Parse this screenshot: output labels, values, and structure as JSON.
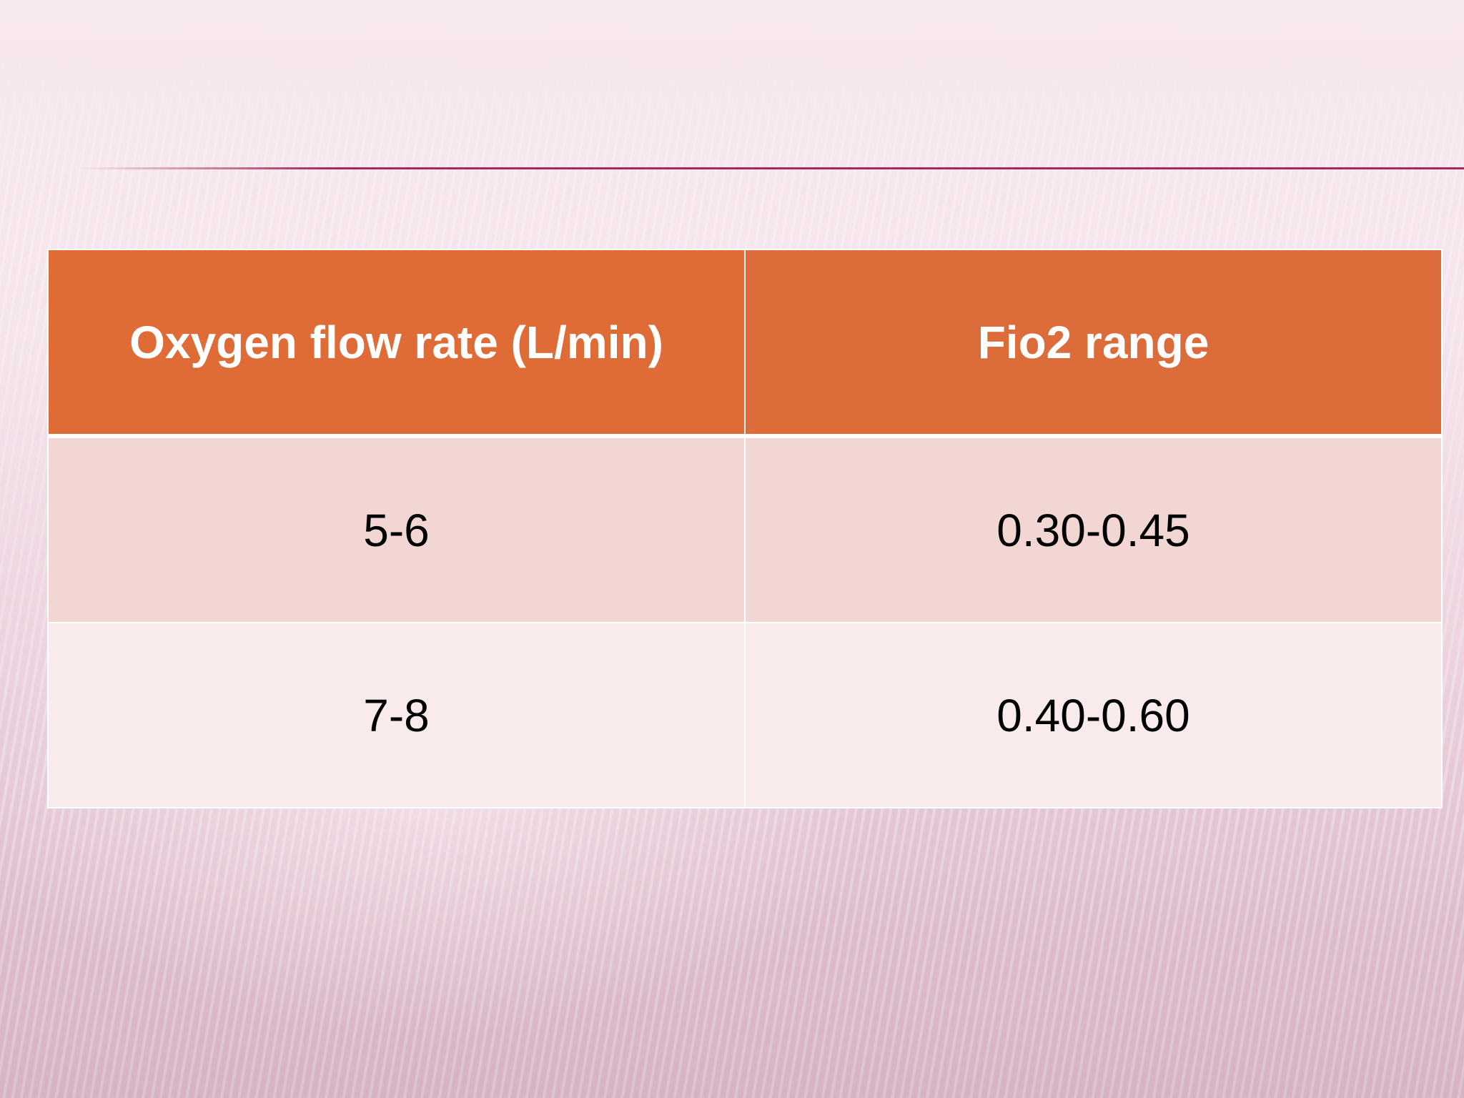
{
  "table": {
    "headers": [
      "Oxygen flow rate (L/min)",
      "Fio2 range"
    ],
    "rows": [
      [
        "5-6",
        "0.30-0.45"
      ],
      [
        "7-8",
        "0.40-0.60"
      ]
    ]
  },
  "colors": {
    "header_bg": "#df6b37",
    "row_odd_bg": "#f2d6d4",
    "row_even_bg": "#f9ebeb",
    "title_rule": "#a62a5a"
  }
}
